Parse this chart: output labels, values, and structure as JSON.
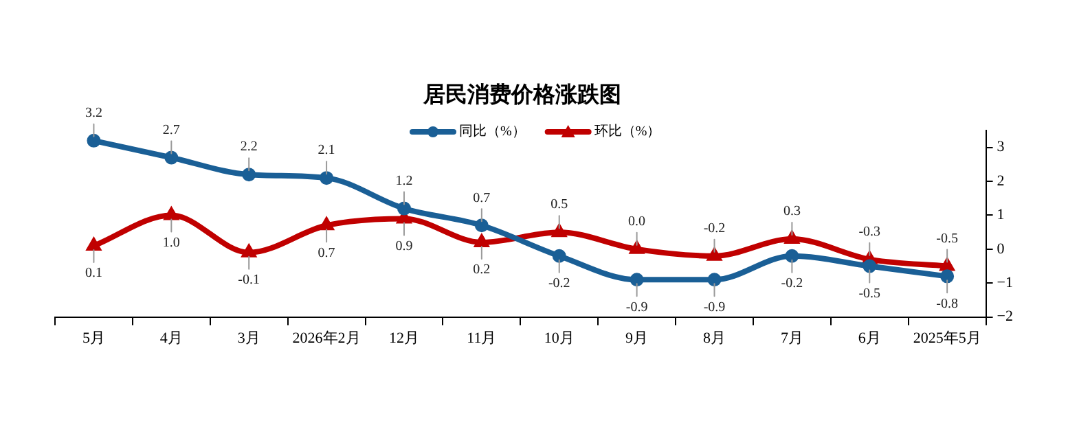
{
  "chart_data": {
    "type": "line",
    "title": "居民消费价格涨跌图",
    "categories": [
      "5月",
      "4月",
      "3月",
      "2026年2月",
      "12月",
      "11月",
      "10月",
      "9月",
      "8月",
      "7月",
      "6月",
      "2025年5月"
    ],
    "series": [
      {
        "name": "同比（%）",
        "color": "#1a5f96",
        "marker": "circle",
        "values": [
          3.2,
          2.7,
          2.2,
          2.1,
          1.2,
          0.7,
          -0.2,
          -0.9,
          -0.9,
          -0.2,
          -0.5,
          -0.8
        ],
        "value_labels": [
          "3.2",
          "2.7",
          "2.2",
          "2.1",
          "1.2",
          "0.7",
          "-0.2",
          "-0.9",
          "-0.9",
          "-0.2",
          "-0.5",
          "-0.8"
        ]
      },
      {
        "name": "环比（%）",
        "color": "#c00000",
        "marker": "triangle",
        "values": [
          0.1,
          1.0,
          -0.1,
          0.7,
          0.9,
          0.2,
          0.5,
          0.0,
          -0.2,
          0.3,
          -0.3,
          -0.5
        ],
        "value_labels": [
          "0.1",
          "1.0",
          "-0.1",
          "0.7",
          "0.9",
          "0.2",
          "0.5",
          "0.0",
          "-0.2",
          "0.3",
          "-0.3",
          "-0.5"
        ]
      }
    ],
    "ylim": [
      -2,
      3.5
    ],
    "yticks": [
      -2,
      -1,
      0,
      1,
      2,
      3
    ],
    "grid": false,
    "legend": "top"
  }
}
